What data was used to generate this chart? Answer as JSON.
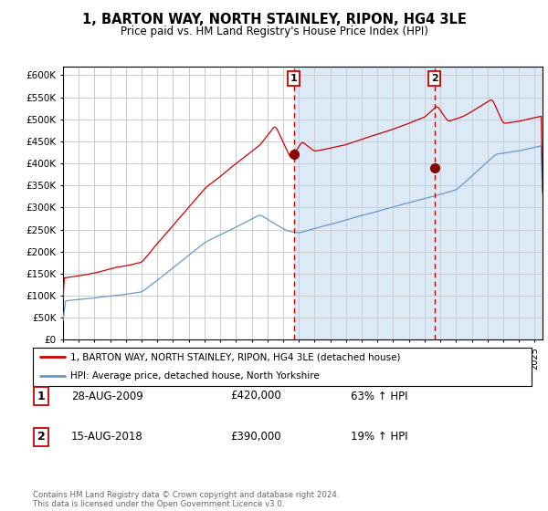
{
  "title": "1, BARTON WAY, NORTH STAINLEY, RIPON, HG4 3LE",
  "subtitle": "Price paid vs. HM Land Registry's House Price Index (HPI)",
  "yticks": [
    0,
    50000,
    100000,
    150000,
    200000,
    250000,
    300000,
    350000,
    400000,
    450000,
    500000,
    550000,
    600000
  ],
  "xlim_start": 1995.0,
  "xlim_end": 2025.5,
  "ylim_min": 0,
  "ylim_max": 620000,
  "bg_color": "#dce9f7",
  "plot_bg": "#ffffff",
  "grid_color": "#cccccc",
  "red_line_color": "#cc0000",
  "blue_line_color": "#6699cc",
  "purchase1_x": 2009.67,
  "purchase1_y": 420000,
  "purchase2_x": 2018.62,
  "purchase2_y": 390000,
  "legend_label_red": "1, BARTON WAY, NORTH STAINLEY, RIPON, HG4 3LE (detached house)",
  "legend_label_blue": "HPI: Average price, detached house, North Yorkshire",
  "annotation1_label": "1",
  "annotation1_date": "28-AUG-2009",
  "annotation1_price": "£420,000",
  "annotation1_pct": "63% ↑ HPI",
  "annotation2_label": "2",
  "annotation2_date": "15-AUG-2018",
  "annotation2_price": "£390,000",
  "annotation2_pct": "19% ↑ HPI",
  "footer": "Contains HM Land Registry data © Crown copyright and database right 2024.\nThis data is licensed under the Open Government Licence v3.0."
}
